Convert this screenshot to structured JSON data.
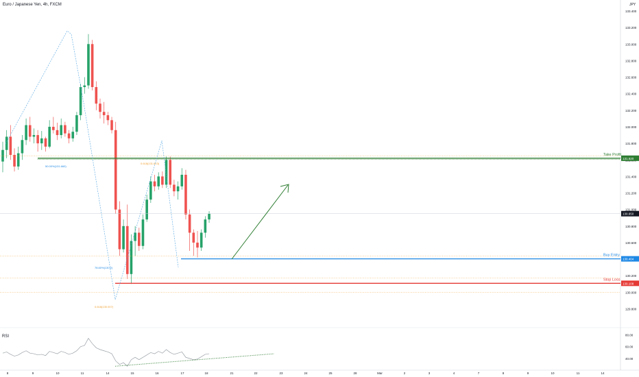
{
  "header": {
    "title": "Euro / Japanese Yen, 4h, FXCM",
    "currency": "JPY"
  },
  "indicator": {
    "label": "RSI",
    "ticks": [
      80,
      60,
      40
    ]
  },
  "colors": {
    "up": "#26a269",
    "down": "#ef5350",
    "take_profit": "#2e7d32",
    "buy_entry": "#1e88e5",
    "stop_loss": "#e53935",
    "fib": "#f0a030",
    "fib_dash": "#4fa3e0"
  },
  "chart_data": {
    "type": "candlestick",
    "ylim": [
      129.7,
      133.6
    ],
    "y_ticks": [
      "133.400",
      "133.200",
      "133.000",
      "132.800",
      "132.600",
      "132.400",
      "132.200",
      "132.000",
      "131.800",
      "131.600",
      "131.400",
      "131.200",
      "131.000",
      "130.800",
      "130.600",
      "130.400",
      "130.200",
      "130.000",
      "129.800"
    ],
    "x_ticks": [
      "8",
      "9",
      "10",
      "11",
      "14",
      "15",
      "16",
      "17",
      "18",
      "21",
      "22",
      "23",
      "24",
      "25",
      "28",
      "Mar",
      "2",
      "3",
      "4",
      "7",
      "8",
      "9",
      "10",
      "11",
      "14"
    ],
    "current_price": "130.950",
    "levels": [
      {
        "name": "Take Profit",
        "value": 131.62,
        "price_label": "131.620"
      },
      {
        "name": "Buy Entry",
        "value": 130.404,
        "price_label": "130.404"
      },
      {
        "name": "Stop Loss",
        "value": 130.108,
        "price_label": "130.108"
      }
    ],
    "fib_labels": [
      {
        "text": "50.00%(131.660)",
        "value": 131.62
      },
      {
        "text": "0.618(131.623)",
        "value": 131.62
      },
      {
        "text": "78.60%(130.2)",
        "value": 130.44
      },
      {
        "text": "0.618(130.007)",
        "value": 130.0
      }
    ],
    "candles": [
      {
        "o": 131.58,
        "h": 131.82,
        "l": 131.45,
        "c": 131.72
      },
      {
        "o": 131.72,
        "h": 131.96,
        "l": 131.62,
        "c": 131.88
      },
      {
        "o": 131.88,
        "h": 132.02,
        "l": 131.6,
        "c": 131.66
      },
      {
        "o": 131.66,
        "h": 131.74,
        "l": 131.46,
        "c": 131.52
      },
      {
        "o": 131.52,
        "h": 131.76,
        "l": 131.48,
        "c": 131.68
      },
      {
        "o": 131.68,
        "h": 131.9,
        "l": 131.6,
        "c": 131.84
      },
      {
        "o": 131.84,
        "h": 132.1,
        "l": 131.78,
        "c": 132.02
      },
      {
        "o": 132.02,
        "h": 132.12,
        "l": 131.82,
        "c": 131.88
      },
      {
        "o": 131.88,
        "h": 131.98,
        "l": 131.8,
        "c": 131.9
      },
      {
        "o": 131.9,
        "h": 131.96,
        "l": 131.7,
        "c": 131.8
      },
      {
        "o": 131.8,
        "h": 131.95,
        "l": 131.72,
        "c": 131.86
      },
      {
        "o": 131.86,
        "h": 131.88,
        "l": 131.7,
        "c": 131.76
      },
      {
        "o": 131.76,
        "h": 132.08,
        "l": 131.74,
        "c": 132.0
      },
      {
        "o": 132.0,
        "h": 132.12,
        "l": 131.92,
        "c": 131.96
      },
      {
        "o": 131.96,
        "h": 132.05,
        "l": 131.84,
        "c": 131.9
      },
      {
        "o": 131.9,
        "h": 132.1,
        "l": 131.86,
        "c": 132.02
      },
      {
        "o": 132.02,
        "h": 132.06,
        "l": 131.88,
        "c": 131.92
      },
      {
        "o": 131.92,
        "h": 131.96,
        "l": 131.8,
        "c": 131.86
      },
      {
        "o": 131.86,
        "h": 132.0,
        "l": 131.82,
        "c": 131.94
      },
      {
        "o": 131.94,
        "h": 132.18,
        "l": 131.9,
        "c": 132.14
      },
      {
        "o": 132.14,
        "h": 132.52,
        "l": 132.08,
        "c": 132.48
      },
      {
        "o": 132.48,
        "h": 132.6,
        "l": 132.4,
        "c": 132.5
      },
      {
        "o": 132.5,
        "h": 133.12,
        "l": 132.46,
        "c": 133.0
      },
      {
        "o": 133.0,
        "h": 133.05,
        "l": 132.44,
        "c": 132.48
      },
      {
        "o": 132.48,
        "h": 132.55,
        "l": 132.2,
        "c": 132.28
      },
      {
        "o": 132.28,
        "h": 132.34,
        "l": 132.1,
        "c": 132.18
      },
      {
        "o": 132.18,
        "h": 132.3,
        "l": 132.04,
        "c": 132.14
      },
      {
        "o": 132.14,
        "h": 132.18,
        "l": 132.02,
        "c": 132.08
      },
      {
        "o": 132.08,
        "h": 132.12,
        "l": 131.92,
        "c": 131.96
      },
      {
        "o": 131.96,
        "h": 132.06,
        "l": 130.95,
        "c": 131.0
      },
      {
        "o": 131.0,
        "h": 131.1,
        "l": 130.44,
        "c": 130.52
      },
      {
        "o": 130.52,
        "h": 130.88,
        "l": 130.48,
        "c": 130.8
      },
      {
        "o": 130.8,
        "h": 131.06,
        "l": 130.16,
        "c": 130.22
      },
      {
        "o": 130.22,
        "h": 130.7,
        "l": 130.1,
        "c": 130.62
      },
      {
        "o": 130.62,
        "h": 130.8,
        "l": 130.44,
        "c": 130.72
      },
      {
        "o": 130.72,
        "h": 130.78,
        "l": 130.5,
        "c": 130.56
      },
      {
        "o": 130.56,
        "h": 130.94,
        "l": 130.52,
        "c": 130.88
      },
      {
        "o": 130.88,
        "h": 131.18,
        "l": 130.85,
        "c": 131.12
      },
      {
        "o": 131.12,
        "h": 131.4,
        "l": 131.08,
        "c": 131.34
      },
      {
        "o": 131.34,
        "h": 131.42,
        "l": 131.22,
        "c": 131.28
      },
      {
        "o": 131.28,
        "h": 131.45,
        "l": 131.24,
        "c": 131.4
      },
      {
        "o": 131.4,
        "h": 131.46,
        "l": 131.26,
        "c": 131.3
      },
      {
        "o": 131.3,
        "h": 131.64,
        "l": 131.26,
        "c": 131.6
      },
      {
        "o": 131.6,
        "h": 131.64,
        "l": 131.26,
        "c": 131.3
      },
      {
        "o": 131.3,
        "h": 131.36,
        "l": 131.16,
        "c": 131.22
      },
      {
        "o": 131.22,
        "h": 131.34,
        "l": 131.12,
        "c": 131.28
      },
      {
        "o": 131.28,
        "h": 131.5,
        "l": 131.24,
        "c": 131.42
      },
      {
        "o": 131.42,
        "h": 131.48,
        "l": 130.88,
        "c": 130.94
      },
      {
        "o": 130.94,
        "h": 131.0,
        "l": 130.5,
        "c": 130.72
      },
      {
        "o": 130.72,
        "h": 130.76,
        "l": 130.44,
        "c": 130.6
      },
      {
        "o": 130.6,
        "h": 130.74,
        "l": 130.42,
        "c": 130.54
      },
      {
        "o": 130.54,
        "h": 130.76,
        "l": 130.5,
        "c": 130.72
      },
      {
        "o": 130.72,
        "h": 130.92,
        "l": 130.66,
        "c": 130.88
      },
      {
        "o": 130.88,
        "h": 130.98,
        "l": 130.84,
        "c": 130.95
      }
    ],
    "rsi": [
      49,
      51,
      47,
      44,
      46,
      50,
      53,
      49,
      48,
      46,
      47,
      45,
      52,
      50,
      48,
      52,
      50,
      47,
      49,
      53,
      60,
      62,
      74,
      65,
      58,
      55,
      53,
      51,
      48,
      36,
      30,
      33,
      27,
      38,
      42,
      38,
      42,
      46,
      50,
      48,
      52,
      49,
      55,
      50,
      47,
      49,
      51,
      42,
      40,
      38,
      39,
      43,
      47,
      48
    ]
  }
}
